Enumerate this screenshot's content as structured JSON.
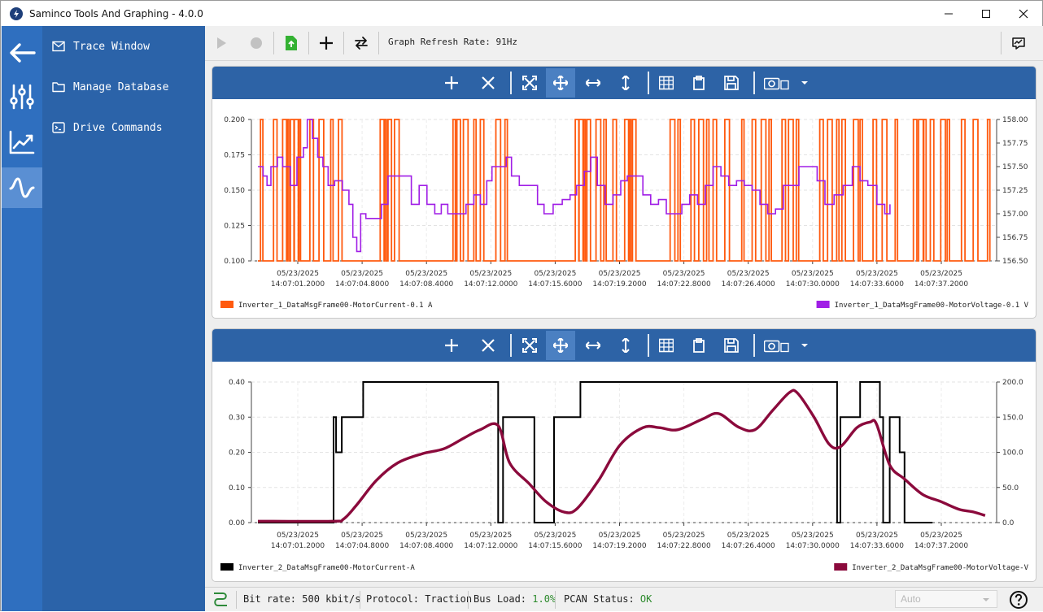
{
  "window": {
    "title": "Saminco Tools And Graphing - 4.0.0"
  },
  "nav": {
    "items": [
      {
        "label": "Trace Window",
        "icon": "mail-icon"
      },
      {
        "label": "Manage Database",
        "icon": "folder-icon"
      },
      {
        "label": "Drive Commands",
        "icon": "terminal-icon"
      }
    ]
  },
  "toolbar": {
    "refresh_label": "Graph Refresh Rate: 91Hz"
  },
  "status": {
    "bit_rate": "Bit rate: 500 kbit/s",
    "protocol": "Protocol: Traction",
    "bus_load_label": "Bus Load: ",
    "bus_load_value": "1.0%",
    "pcan_label": "PCAN Status: ",
    "pcan_value": "OK",
    "mode_select": "Auto"
  },
  "colors": {
    "rail": "#2f6fbf",
    "nav": "#2b63a9",
    "panel_bar": "#2d63a6",
    "series_current_1": "#ff5a0f",
    "series_voltage_1": "#a01ee6",
    "series_current_2": "#000000",
    "series_voltage_2": "#8b0a3c"
  },
  "chart_data": [
    {
      "type": "line",
      "x_tick_labels": [
        [
          "05/23/2025",
          "14:07:01.2000"
        ],
        [
          "05/23/2025",
          "14:07:04.8000"
        ],
        [
          "05/23/2025",
          "14:07:08.4000"
        ],
        [
          "05/23/2025",
          "14:07:12.0000"
        ],
        [
          "05/23/2025",
          "14:07:15.6000"
        ],
        [
          "05/23/2025",
          "14:07:19.2000"
        ],
        [
          "05/23/2025",
          "14:07:22.8000"
        ],
        [
          "05/23/2025",
          "14:07:26.4000"
        ],
        [
          "05/23/2025",
          "14:07:30.0000"
        ],
        [
          "05/23/2025",
          "14:07:33.6000"
        ],
        [
          "05/23/2025",
          "14:07:37.2000"
        ]
      ],
      "y_left": {
        "ticks": [
          "0.100",
          "0.125",
          "0.150",
          "0.175",
          "0.200"
        ],
        "range": [
          0.1,
          0.2
        ]
      },
      "y_right": {
        "ticks": [
          "156.50",
          "156.75",
          "157.00",
          "157.25",
          "157.50",
          "157.75",
          "158.00"
        ],
        "range": [
          156.5,
          158.0
        ]
      },
      "legend": [
        "Inverter_1_DataMsgFrame00-MotorCurrent-0.1 A",
        "Inverter_1_DataMsgFrame00-MotorVoltage-0.1 V"
      ],
      "series": [
        {
          "name": "Inverter_1_DataMsgFrame00-MotorCurrent-0.1 A",
          "axis": "left",
          "kind": "square-pulses",
          "low": 0.1,
          "high": 0.2,
          "pulses_t": [
            0.2,
            1.2,
            1.9,
            2.2,
            2.5,
            2.8,
            3.1,
            4.0,
            4.7,
            5.6,
            6.2,
            9.4,
            9.7,
            10.0,
            10.5,
            15.0,
            15.3,
            15.8,
            16.6,
            17.1,
            18.3,
            19.0,
            24.4,
            24.7,
            25.0,
            25.3,
            26.0,
            26.6,
            27.3,
            28.2,
            28.5,
            28.8,
            31.7,
            32.3,
            33.3,
            33.9,
            34.5,
            35.0,
            35.9,
            37.2,
            38.0,
            38.7,
            39.3,
            40.3,
            40.8,
            41.4,
            43.2,
            43.8,
            44.5,
            44.9,
            45.8,
            46.3,
            47.3,
            48.0,
            49.0,
            50.4,
            50.8,
            51.2,
            51.7,
            52.5,
            53.0,
            54.1,
            55.0,
            56.1
          ]
        },
        {
          "name": "Inverter_1_DataMsgFrame00-MotorVoltage-0.1 V",
          "axis": "right",
          "kind": "steps",
          "points": [
            [
              0.0,
              157.5
            ],
            [
              0.4,
              157.4
            ],
            [
              0.7,
              157.3
            ],
            [
              1.0,
              157.5
            ],
            [
              1.5,
              157.6
            ],
            [
              1.9,
              157.5
            ],
            [
              2.5,
              157.3
            ],
            [
              3.0,
              157.6
            ],
            [
              3.5,
              157.7
            ],
            [
              3.8,
              158.0
            ],
            [
              4.2,
              157.8
            ],
            [
              4.6,
              157.6
            ],
            [
              5.0,
              157.5
            ],
            [
              5.4,
              157.3
            ],
            [
              5.9,
              157.35
            ],
            [
              6.5,
              157.25
            ],
            [
              7.0,
              157.1
            ],
            [
              7.3,
              156.75
            ],
            [
              7.6,
              156.6
            ],
            [
              7.9,
              157.0
            ],
            [
              8.3,
              156.95
            ],
            [
              8.8,
              156.95
            ],
            [
              9.5,
              157.1
            ],
            [
              10.0,
              157.4
            ],
            [
              10.5,
              157.4
            ],
            [
              11.2,
              157.4
            ],
            [
              11.8,
              157.1
            ],
            [
              12.4,
              157.3
            ],
            [
              13.0,
              157.1
            ],
            [
              13.6,
              157.0
            ],
            [
              14.1,
              157.1
            ],
            [
              14.6,
              157.0
            ],
            [
              15.3,
              157.0
            ],
            [
              16.0,
              157.1
            ],
            [
              16.6,
              157.2
            ],
            [
              17.1,
              157.1
            ],
            [
              17.6,
              157.35
            ],
            [
              18.0,
              157.5
            ],
            [
              18.5,
              157.5
            ],
            [
              19.1,
              157.6
            ],
            [
              19.5,
              157.4
            ],
            [
              20.1,
              157.3
            ],
            [
              20.8,
              157.3
            ],
            [
              21.5,
              157.1
            ],
            [
              22.0,
              157.0
            ],
            [
              22.7,
              157.1
            ],
            [
              23.4,
              157.15
            ],
            [
              24.0,
              157.2
            ],
            [
              24.5,
              157.3
            ],
            [
              25.1,
              157.45
            ],
            [
              25.6,
              157.6
            ],
            [
              26.1,
              157.3
            ],
            [
              26.7,
              157.1
            ],
            [
              27.3,
              157.2
            ],
            [
              27.9,
              157.35
            ],
            [
              28.4,
              157.4
            ],
            [
              29.1,
              157.4
            ],
            [
              29.6,
              157.2
            ],
            [
              30.2,
              157.1
            ],
            [
              30.8,
              157.15
            ],
            [
              31.4,
              157.0
            ],
            [
              32.0,
              157.0
            ],
            [
              32.6,
              157.1
            ],
            [
              33.2,
              157.2
            ],
            [
              33.8,
              157.1
            ],
            [
              34.4,
              157.3
            ],
            [
              35.0,
              157.5
            ],
            [
              35.6,
              157.4
            ],
            [
              36.2,
              157.3
            ],
            [
              36.8,
              157.35
            ],
            [
              37.4,
              157.3
            ],
            [
              38.0,
              157.25
            ],
            [
              38.6,
              157.1
            ],
            [
              39.2,
              157.0
            ],
            [
              39.8,
              157.05
            ],
            [
              40.4,
              157.3
            ],
            [
              41.0,
              157.3
            ],
            [
              41.6,
              157.5
            ],
            [
              42.3,
              157.5
            ],
            [
              43.0,
              157.35
            ],
            [
              43.6,
              157.1
            ],
            [
              44.3,
              157.2
            ],
            [
              45.0,
              157.3
            ],
            [
              45.7,
              157.5
            ],
            [
              46.3,
              157.35
            ],
            [
              46.9,
              157.3
            ],
            [
              47.6,
              157.1
            ],
            [
              48.2,
              157.0
            ],
            [
              48.6,
              157.1
            ]
          ]
        }
      ]
    },
    {
      "type": "line",
      "x_tick_labels": [
        [
          "05/23/2025",
          "14:07:01.2000"
        ],
        [
          "05/23/2025",
          "14:07:04.8000"
        ],
        [
          "05/23/2025",
          "14:07:08.4000"
        ],
        [
          "05/23/2025",
          "14:07:12.0000"
        ],
        [
          "05/23/2025",
          "14:07:15.6000"
        ],
        [
          "05/23/2025",
          "14:07:19.2000"
        ],
        [
          "05/23/2025",
          "14:07:22.8000"
        ],
        [
          "05/23/2025",
          "14:07:26.4000"
        ],
        [
          "05/23/2025",
          "14:07:30.0000"
        ],
        [
          "05/23/2025",
          "14:07:33.6000"
        ],
        [
          "05/23/2025",
          "14:07:37.2000"
        ]
      ],
      "y_left": {
        "ticks": [
          "0.00",
          "0.10",
          "0.20",
          "0.30",
          "0.40"
        ],
        "range": [
          0.0,
          0.4
        ]
      },
      "y_right": {
        "ticks": [
          "0.0",
          "50.0",
          "100.0",
          "150.0",
          "200.0"
        ],
        "range": [
          0.0,
          200.0
        ]
      },
      "legend": [
        "Inverter_2_DataMsgFrame00-MotorCurrent-A",
        "Inverter_2_DataMsgFrame00-MotorVoltage-V"
      ],
      "series": [
        {
          "name": "Inverter_2_DataMsgFrame00-MotorCurrent-A",
          "axis": "left",
          "kind": "steps",
          "points": [
            [
              0.0,
              0.0
            ],
            [
              4.6,
              0.0
            ],
            [
              4.6,
              0.3
            ],
            [
              4.75,
              0.3
            ],
            [
              4.75,
              0.2
            ],
            [
              5.1,
              0.2
            ],
            [
              5.1,
              0.3
            ],
            [
              6.4,
              0.3
            ],
            [
              6.4,
              0.4
            ],
            [
              14.6,
              0.4
            ],
            [
              14.6,
              0.0
            ],
            [
              14.9,
              0.0
            ],
            [
              14.9,
              0.3
            ],
            [
              16.8,
              0.3
            ],
            [
              16.8,
              0.0
            ],
            [
              18.0,
              0.0
            ],
            [
              18.0,
              0.3
            ],
            [
              19.6,
              0.3
            ],
            [
              19.6,
              0.4
            ],
            [
              35.2,
              0.4
            ],
            [
              35.2,
              0.0
            ],
            [
              35.4,
              0.0
            ],
            [
              35.4,
              0.3
            ],
            [
              36.6,
              0.3
            ],
            [
              36.6,
              0.4
            ],
            [
              37.8,
              0.4
            ],
            [
              37.8,
              0.3
            ],
            [
              38.0,
              0.3
            ],
            [
              38.0,
              0.0
            ],
            [
              38.4,
              0.0
            ],
            [
              38.4,
              0.3
            ],
            [
              39.0,
              0.3
            ],
            [
              39.0,
              0.2
            ],
            [
              39.3,
              0.2
            ],
            [
              39.3,
              0.0
            ],
            [
              41.0,
              0.0
            ]
          ]
        },
        {
          "name": "Inverter_2_DataMsgFrame00-MotorVoltage-V",
          "axis": "right",
          "kind": "smooth",
          "points": [
            [
              0.0,
              2.0
            ],
            [
              4.5,
              2.0
            ],
            [
              5.2,
              5.0
            ],
            [
              6.0,
              25.0
            ],
            [
              7.2,
              60.0
            ],
            [
              8.5,
              85.0
            ],
            [
              10.0,
              98.0
            ],
            [
              11.3,
              105.0
            ],
            [
              12.5,
              120.0
            ],
            [
              13.5,
              132.0
            ],
            [
              14.6,
              138.0
            ],
            [
              15.3,
              85.0
            ],
            [
              16.5,
              55.0
            ],
            [
              17.5,
              30.0
            ],
            [
              18.6,
              15.0
            ],
            [
              19.4,
              20.0
            ],
            [
              20.7,
              60.0
            ],
            [
              22.0,
              110.0
            ],
            [
              23.4,
              135.0
            ],
            [
              24.4,
              135.0
            ],
            [
              25.5,
              132.0
            ],
            [
              27.0,
              147.0
            ],
            [
              28.0,
              155.0
            ],
            [
              29.2,
              136.0
            ],
            [
              30.2,
              132.0
            ],
            [
              31.3,
              160.0
            ],
            [
              32.3,
              185.0
            ],
            [
              32.8,
              184.0
            ],
            [
              33.8,
              150.0
            ],
            [
              34.7,
              112.0
            ],
            [
              35.4,
              108.0
            ],
            [
              36.4,
              135.0
            ],
            [
              37.2,
              143.0
            ],
            [
              37.6,
              140.0
            ],
            [
              38.4,
              82.0
            ],
            [
              39.3,
              62.0
            ],
            [
              40.4,
              40.0
            ],
            [
              41.5,
              30.0
            ],
            [
              42.6,
              19.0
            ],
            [
              43.5,
              15.0
            ],
            [
              44.2,
              10.0
            ]
          ]
        }
      ]
    }
  ]
}
